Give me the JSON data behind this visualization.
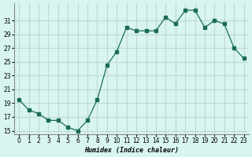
{
  "x": [
    0,
    1,
    2,
    3,
    4,
    5,
    6,
    7,
    8,
    9,
    10,
    11,
    12,
    13,
    14,
    15,
    16,
    17,
    18,
    19,
    20,
    21,
    22,
    23
  ],
  "y": [
    19.5,
    18.0,
    17.5,
    16.5,
    16.5,
    15.5,
    15.0,
    16.5,
    19.5,
    24.5,
    26.5,
    30.0,
    29.5,
    29.5,
    29.5,
    31.5,
    30.5,
    32.5,
    32.5,
    30.0,
    31.0,
    30.5,
    27.0,
    25.5
  ],
  "line_color": "#1a6b5a",
  "marker_color": "#1a6b5a",
  "bg_color": "#d8f5f0",
  "grid_color": "#c0d8d4",
  "xlabel": "Humidex (Indice chaleur)",
  "yticks": [
    15,
    17,
    19,
    21,
    23,
    25,
    27,
    29,
    31
  ],
  "xticks": [
    0,
    1,
    2,
    3,
    4,
    5,
    6,
    7,
    8,
    9,
    10,
    11,
    12,
    13,
    14,
    15,
    16,
    17,
    18,
    19,
    20,
    21,
    22,
    23
  ],
  "ylim": [
    14.5,
    33.5
  ],
  "xlim": [
    -0.5,
    23.5
  ],
  "line_width": 0.9,
  "marker_size": 2.5
}
